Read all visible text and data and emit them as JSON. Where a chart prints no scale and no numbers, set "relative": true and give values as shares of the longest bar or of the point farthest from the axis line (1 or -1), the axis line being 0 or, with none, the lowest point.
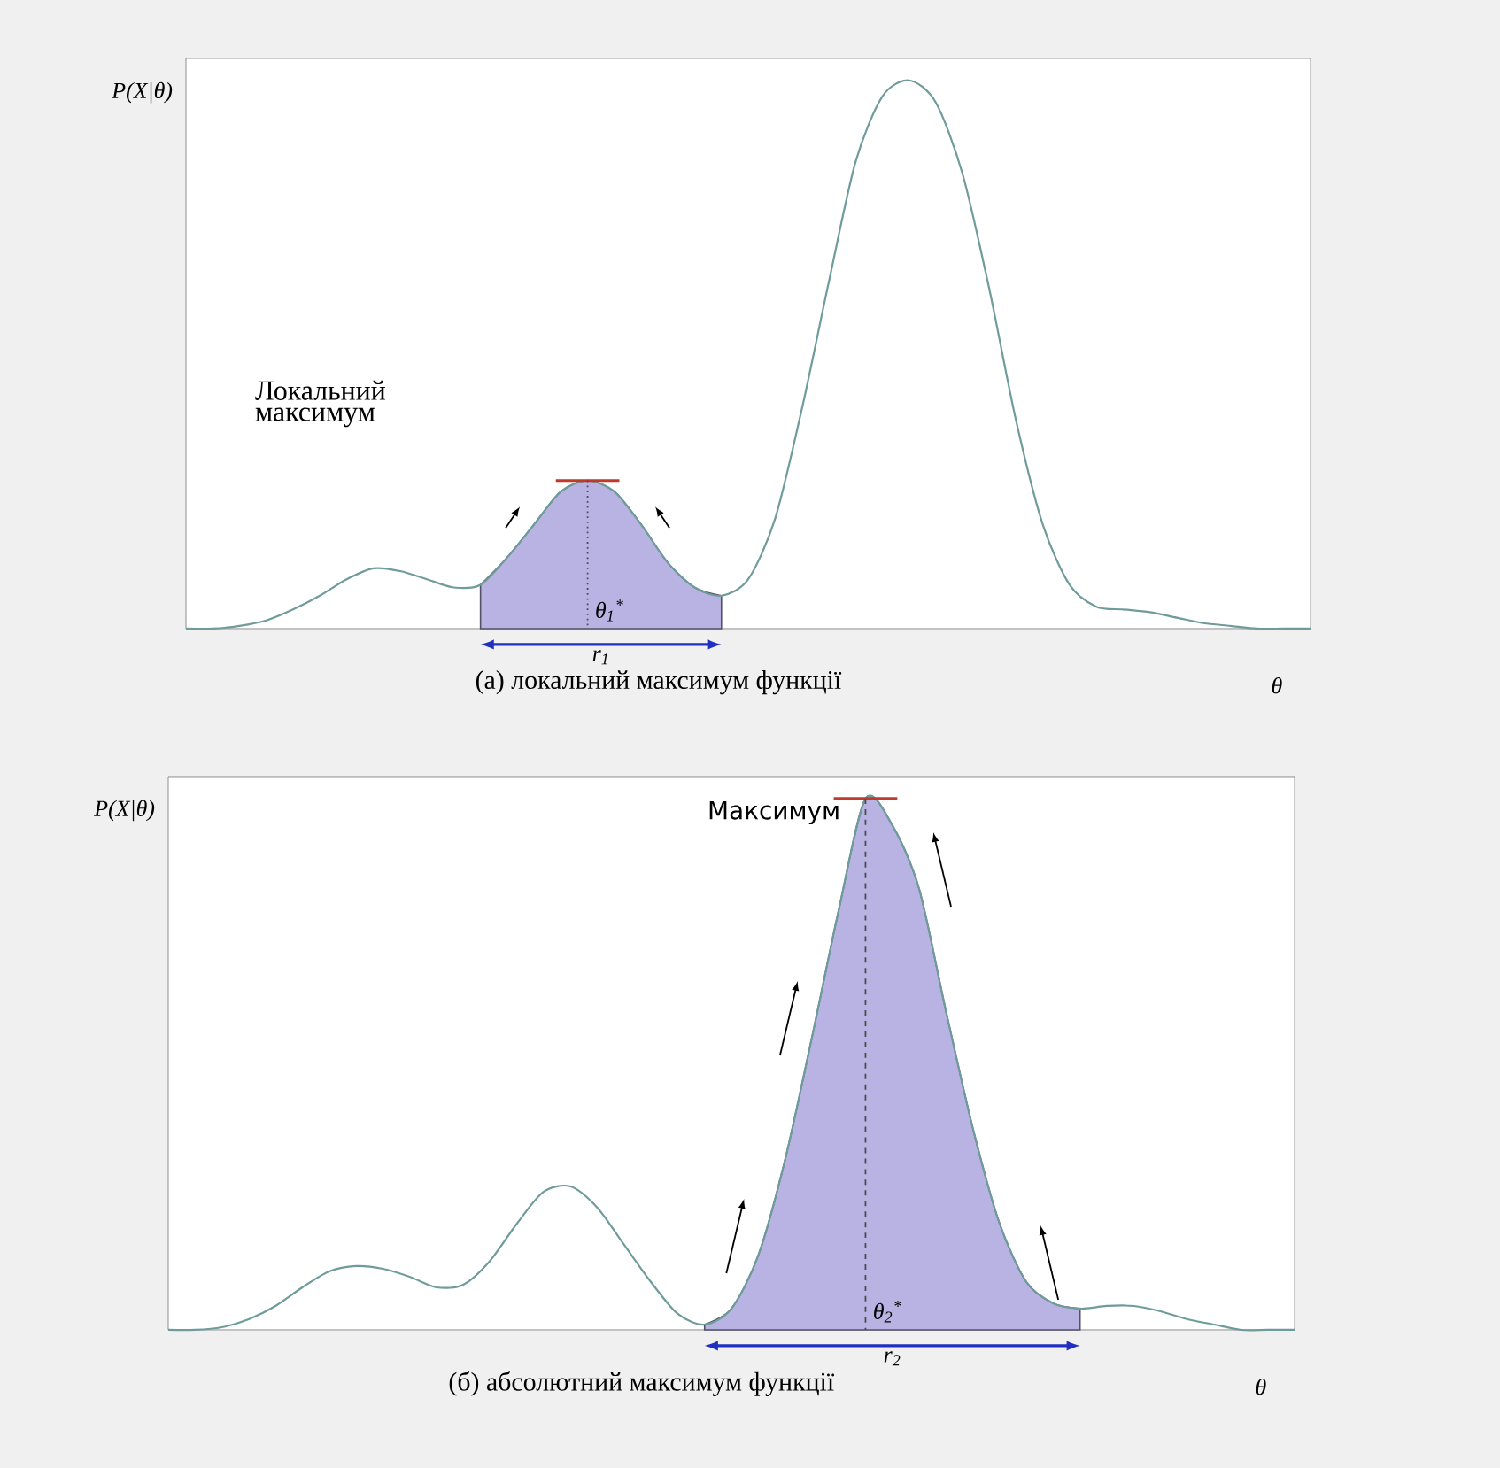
{
  "chart_data": [
    {
      "type": "line",
      "title": "(а)   локальний максимум функції",
      "xlabel": "θ",
      "ylabel": "P(X|θ)",
      "relative": true,
      "categories": [
        null,
        null,
        null,
        null,
        null,
        null,
        null,
        null,
        null,
        null,
        null,
        null,
        null,
        null,
        null,
        null,
        null,
        null,
        null,
        null,
        null,
        null,
        null,
        null,
        null,
        null,
        null,
        null,
        null,
        null,
        null,
        null,
        null,
        null,
        null,
        null,
        null,
        null,
        null,
        null,
        null,
        null,
        null
      ],
      "series": [
        {
          "type": "area",
          "color": "#b9b3e3",
          "values": [
            null,
            null,
            null,
            null,
            null,
            null,
            null,
            null,
            null,
            null,
            null,
            0.08,
            0.13,
            0.19,
            0.25,
            0.27,
            0.25,
            0.19,
            0.12,
            0.075,
            0.06,
            null,
            null,
            null,
            null,
            null,
            null,
            null,
            null,
            null,
            null,
            null,
            null,
            null,
            null,
            null,
            null,
            null,
            null,
            null,
            null,
            null,
            null
          ]
        },
        {
          "color": "#6f9c9a",
          "values": [
            0,
            0,
            0.005,
            0.015,
            0.035,
            0.06,
            0.09,
            0.11,
            0.105,
            0.09,
            0.075,
            0.08,
            0.13,
            0.19,
            0.25,
            0.27,
            0.25,
            0.19,
            0.12,
            0.075,
            0.06,
            0.09,
            0.2,
            0.4,
            0.63,
            0.85,
            0.97,
            1.0,
            0.96,
            0.83,
            0.62,
            0.38,
            0.19,
            0.08,
            0.04,
            0.035,
            0.03,
            0.02,
            0.01,
            0.005,
            0,
            0,
            0
          ]
        }
      ],
      "annotations": [
        "Локальний максимум",
        "θ$_{1}$$^{*}$",
        "r$_{1}$"
      ]
    },
    {
      "type": "line",
      "title": "(б)  абсолютний максимум функції",
      "xlabel": "θ",
      "ylabel": "P(X|θ)",
      "relative": true,
      "categories": [
        null,
        null,
        null,
        null,
        null,
        null,
        null,
        null,
        null,
        null,
        null,
        null,
        null,
        null,
        null,
        null,
        null,
        null,
        null,
        null,
        null,
        null,
        null,
        null,
        null,
        null,
        null,
        null,
        null,
        null,
        null,
        null,
        null,
        null,
        null,
        null,
        null,
        null,
        null,
        null,
        null,
        null,
        null
      ],
      "series": [
        {
          "type": "area",
          "color": "#b9b3e3",
          "values": [
            null,
            null,
            null,
            null,
            null,
            null,
            null,
            null,
            null,
            null,
            null,
            null,
            null,
            null,
            null,
            null,
            null,
            null,
            null,
            null,
            0.01,
            0.04,
            0.14,
            0.32,
            0.55,
            0.79,
            1.0,
            0.95,
            0.83,
            0.6,
            0.38,
            0.2,
            0.09,
            0.05,
            0.04,
            null,
            null,
            null,
            null,
            null,
            null,
            null,
            null
          ]
        },
        {
          "color": "#6f9c9a",
          "values": [
            0,
            0,
            0.005,
            0.02,
            0.045,
            0.08,
            0.11,
            0.12,
            0.115,
            0.1,
            0.08,
            0.085,
            0.13,
            0.2,
            0.26,
            0.27,
            0.23,
            0.16,
            0.09,
            0.03,
            0.01,
            0.04,
            0.14,
            0.32,
            0.55,
            0.79,
            1.0,
            0.95,
            0.83,
            0.6,
            0.38,
            0.2,
            0.09,
            0.05,
            0.04,
            0.045,
            0.045,
            0.035,
            0.02,
            0.01,
            0,
            0,
            0
          ]
        }
      ],
      "annotations": [
        "Максимум",
        "θ$_{2}$$^{*}$",
        "r$_{2}$"
      ]
    }
  ]
}
